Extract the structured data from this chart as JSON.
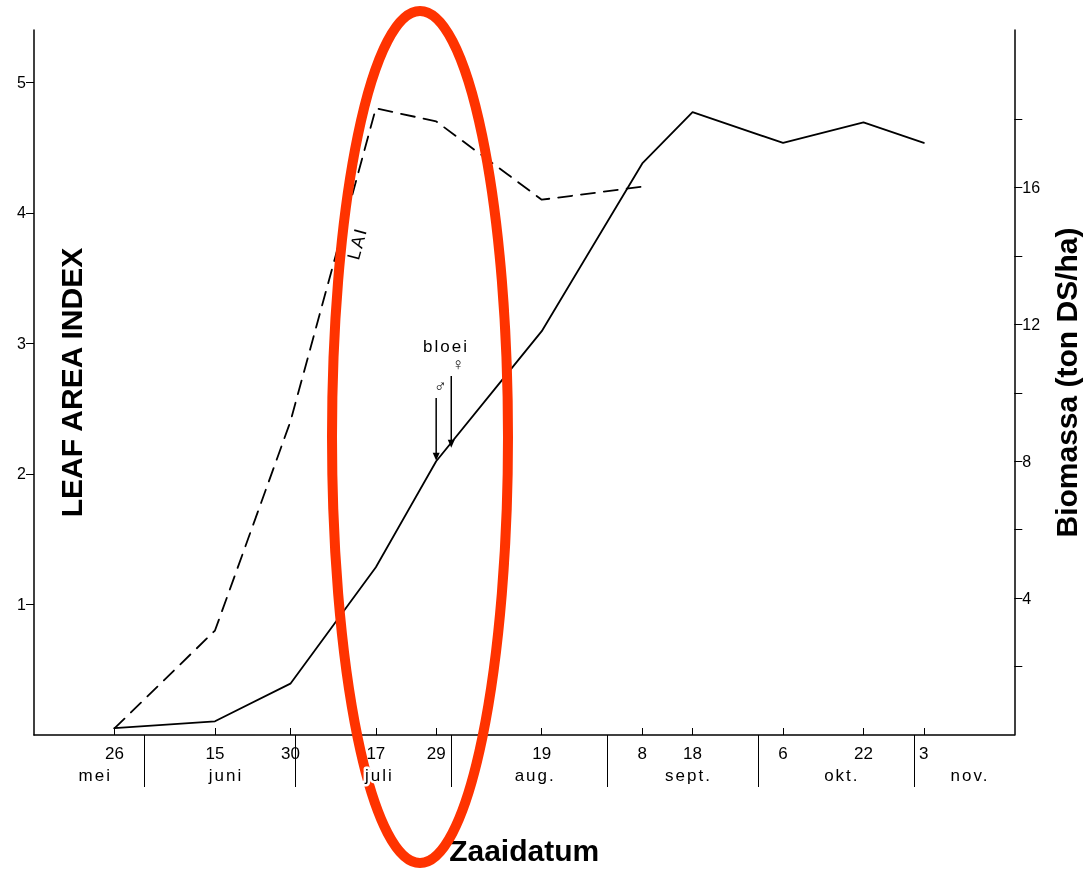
{
  "chart_data": {
    "type": "line",
    "xlabel": "Zaaidatum",
    "ylabel": "LEAF AREA INDEX",
    "y2label": "Biomassa (ton DS/ha)",
    "x": [
      "--05-26",
      "--06-15",
      "--06-30",
      "--07-17",
      "--07-29",
      "--08-19",
      "--09-08",
      "--09-18",
      "--10-06",
      "--10-22",
      "--11-03"
    ],
    "series": [
      {
        "name": "LAI",
        "color": "#000000",
        "line_style": "dashed",
        "x": [
          "--05-26",
          "--06-15",
          "--06-30",
          "--07-17",
          "--07-29",
          "--08-19",
          "--09-08"
        ],
        "values": [
          0.05,
          0.8,
          2.4,
          4.8,
          4.7,
          4.1,
          4.2
        ]
      },
      {
        "color": "#000000",
        "line_style": "solid",
        "axis": "y2",
        "values": [
          0.2,
          0.4,
          1.5,
          4.9,
          8.0,
          11.8,
          16.7,
          18.2,
          17.3,
          17.9,
          17.3
        ]
      }
    ],
    "xlim": [
      "--05-10",
      "--11-21"
    ],
    "xticks": [
      {
        "value": "--05-26",
        "label": "26"
      },
      {
        "value": "--06-01",
        "label": null
      },
      {
        "value": "--06-15",
        "label": "15"
      },
      {
        "value": "--06-30",
        "label": "30"
      },
      {
        "value": "--07-01",
        "label": null
      },
      {
        "value": "--07-17",
        "label": "17"
      },
      {
        "value": "--07-29",
        "label": "29"
      },
      {
        "value": "--08-01",
        "label": null
      },
      {
        "value": "--08-19",
        "label": "19"
      },
      {
        "value": "--09-01",
        "label": null
      },
      {
        "value": "--09-08",
        "label": "8"
      },
      {
        "value": "--09-18",
        "label": "18"
      },
      {
        "value": "--10-01",
        "label": null
      },
      {
        "value": "--10-06",
        "label": "6"
      },
      {
        "value": "--10-22",
        "label": "22"
      },
      {
        "value": "--11-01",
        "label": null
      },
      {
        "value": "--11-03",
        "label": "3"
      }
    ],
    "ylim": [
      0,
      5.4
    ],
    "yticks": [
      1,
      2,
      3,
      4,
      5
    ],
    "y2lim": [
      0,
      20.6
    ],
    "y2ticks": [
      {
        "value": 2,
        "label": null
      },
      4,
      {
        "value": 6,
        "label": null
      },
      8,
      {
        "value": 10,
        "label": null
      },
      12,
      {
        "value": 14,
        "label": null
      },
      16,
      {
        "value": 18,
        "label": null
      }
    ],
    "grid": false,
    "legend": false,
    "marker": "none",
    "annotations": [
      "bloei",
      {
        "text": "♂",
        "x": "--07-29",
        "y": 2.1
      },
      {
        "text": "♀",
        "x": "--08-01",
        "y": 2.2
      },
      "mei",
      "juni",
      "juli",
      "aug.",
      "sept.",
      "okt.",
      "nov."
    ]
  }
}
